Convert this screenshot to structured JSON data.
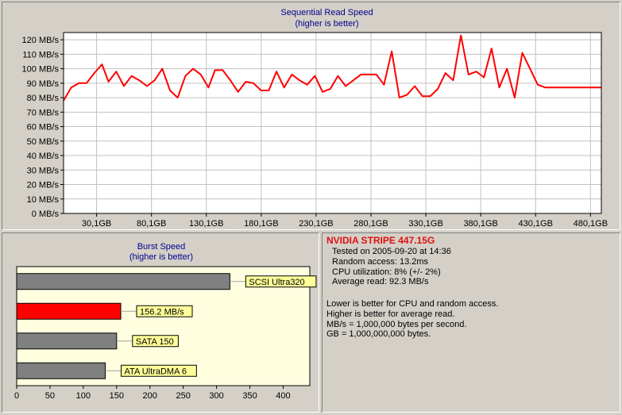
{
  "charts": {
    "sequential": {
      "title": "Sequential Read Speed",
      "subtitle": "(higher is better)",
      "y_tick_labels": [
        "0 MB/s",
        "10 MB/s",
        "20 MB/s",
        "30 MB/s",
        "40 MB/s",
        "50 MB/s",
        "60 MB/s",
        "70 MB/s",
        "80 MB/s",
        "90 MB/s",
        "100 MB/s",
        "110 MB/s",
        "120 MB/s"
      ],
      "x_tick_labels": [
        "30,1GB",
        "80,1GB",
        "130,1GB",
        "180,1GB",
        "230,1GB",
        "280,1GB",
        "330,1GB",
        "380,1GB",
        "430,1GB",
        "480,1GB"
      ]
    },
    "burst": {
      "title": "Burst Speed",
      "subtitle": "(higher is better)",
      "x_tick_labels": [
        "0",
        "50",
        "100",
        "150",
        "200",
        "250",
        "300",
        "350",
        "400"
      ],
      "bar_labels": [
        "SCSI Ultra320",
        "156.2 MB/s",
        "SATA 150",
        "ATA UltraDMA 6"
      ]
    }
  },
  "chart_data": [
    {
      "type": "line",
      "title": "Sequential Read Speed",
      "subtitle": "(higher is better)",
      "ylabel_unit": "MB/s",
      "xlabel_unit": "GB",
      "ylim": [
        0,
        125
      ],
      "xlim": [
        0,
        490
      ],
      "x_ticks": [
        30.1,
        80.1,
        130.1,
        180.1,
        230.1,
        280.1,
        330.1,
        380.1,
        430.1,
        480.1
      ],
      "y_ticks": [
        0,
        10,
        20,
        30,
        40,
        50,
        60,
        70,
        80,
        90,
        100,
        110,
        120
      ],
      "grid": true,
      "line_color": "#ff0000",
      "series": [
        {
          "x": [
            0,
            7,
            14,
            21,
            28,
            35,
            41,
            48,
            55,
            62,
            69,
            76,
            83,
            90,
            97,
            104,
            111,
            118,
            125,
            132,
            138,
            145,
            152,
            159,
            166,
            173,
            180,
            187,
            194,
            201,
            208,
            215,
            222,
            229,
            236,
            243,
            250,
            257,
            264,
            271,
            278,
            285,
            292,
            299,
            306,
            313,
            320,
            327,
            334,
            341,
            348,
            355,
            362,
            369,
            376,
            383,
            390,
            397,
            404,
            411,
            418,
            425,
            432,
            439,
            446,
            453,
            460,
            467,
            474,
            481,
            490
          ],
          "y": [
            78,
            87,
            90,
            90,
            97,
            103,
            91,
            98,
            88,
            95,
            92,
            88,
            92,
            100,
            85,
            80,
            95,
            100,
            96,
            87,
            99,
            99,
            92,
            84,
            91,
            90,
            85,
            85,
            98,
            87,
            96,
            92,
            89,
            95,
            84,
            86,
            95,
            88,
            92,
            96,
            96,
            96,
            89,
            112,
            80,
            82,
            88,
            81,
            81,
            86,
            97,
            92,
            123,
            96,
            98,
            94,
            114,
            87,
            100,
            80,
            111,
            100,
            89,
            87,
            87,
            87,
            87,
            87,
            87,
            87,
            87
          ]
        }
      ]
    },
    {
      "type": "bar",
      "orientation": "horizontal",
      "title": "Burst Speed",
      "subtitle": "(higher is better)",
      "xlim": [
        0,
        440
      ],
      "x_ticks": [
        0,
        50,
        100,
        150,
        200,
        250,
        300,
        350,
        400
      ],
      "categories": [
        "SCSI Ultra320",
        "156.2 MB/s",
        "SATA 150",
        "ATA UltraDMA 6"
      ],
      "values": [
        320,
        156.2,
        150,
        133
      ],
      "colors": [
        "#808080",
        "#ff0000",
        "#808080",
        "#808080"
      ],
      "grid": false
    }
  ],
  "info": {
    "title": "NVIDIA STRIPE  447.15G",
    "tested": "Tested on 2005-09-20 at 14:36",
    "random_access": "Random access: 13.2ms",
    "cpu": "CPU utilization: 8% (+/- 2%)",
    "average": "Average read: 92.3 MB/s",
    "note1": "Lower is better for CPU and random access.",
    "note2": "Higher is better for average read.",
    "note3": "MB/s = 1,000,000 bytes per second.",
    "note4": "GB = 1,000,000,000 bytes."
  }
}
